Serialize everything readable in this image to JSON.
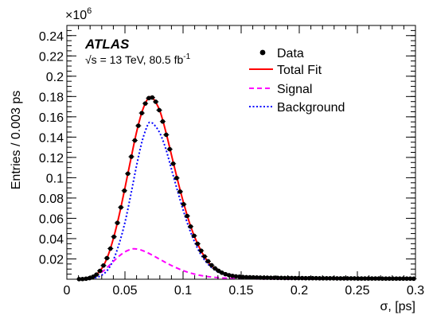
{
  "chart_data": {
    "type": "line",
    "xlabel": "σ, [ps]",
    "ylabel": "Entries / 0.003 ps",
    "y_multiplier": "×10",
    "y_multiplier_exp": "6",
    "xlim": [
      0,
      0.3
    ],
    "ylim": [
      0,
      0.25
    ],
    "x_ticks": [
      "0",
      "0.05",
      "0.1",
      "0.15",
      "0.2",
      "0.25",
      "0.3"
    ],
    "y_ticks": [
      "0.02",
      "0.04",
      "0.06",
      "0.08",
      "0.1",
      "0.12",
      "0.14",
      "0.16",
      "0.18",
      "0.2",
      "0.22",
      "0.24"
    ],
    "x_tick_values": [
      0,
      0.05,
      0.1,
      0.15,
      0.2,
      0.25,
      0.3
    ],
    "y_tick_values": [
      0.02,
      0.04,
      0.06,
      0.08,
      0.1,
      0.12,
      0.14,
      0.16,
      0.18,
      0.2,
      0.22,
      0.24
    ],
    "experiment": "ATLAS",
    "energy_label": "√s = 13 TeV, 80.5 fb",
    "energy_label_sup": "-1",
    "legend_position": "top-right",
    "legend": [
      {
        "name": "Data",
        "style": "marker",
        "color": "#000000"
      },
      {
        "name": "Total Fit",
        "style": "solid",
        "color": "#ff0000"
      },
      {
        "name": "Signal",
        "style": "dashed",
        "color": "#ff00ff"
      },
      {
        "name": "Background",
        "style": "dotted",
        "color": "#0000ff"
      }
    ],
    "series": [
      {
        "name": "Data",
        "kind": "points",
        "color": "#000000",
        "x": [
          0.0105,
          0.0135,
          0.0165,
          0.0195,
          0.0225,
          0.0255,
          0.0285,
          0.0315,
          0.0345,
          0.0375,
          0.0405,
          0.0435,
          0.0465,
          0.0495,
          0.0525,
          0.0555,
          0.0585,
          0.0615,
          0.0645,
          0.0675,
          0.0705,
          0.0735,
          0.0765,
          0.0795,
          0.0825,
          0.0855,
          0.0885,
          0.0915,
          0.0945,
          0.0975,
          0.1005,
          0.1035,
          0.1065,
          0.1095,
          0.1125,
          0.1155,
          0.1185,
          0.1215,
          0.1245,
          0.1275,
          0.1305,
          0.1335,
          0.1365,
          0.1395,
          0.1425,
          0.1455,
          0.1485,
          0.1515,
          0.1545,
          0.1575,
          0.1605,
          0.1635,
          0.1665,
          0.1695,
          0.1725,
          0.1755,
          0.1785,
          0.1815,
          0.1845,
          0.1875,
          0.1905,
          0.1935,
          0.1965,
          0.1995,
          0.2025,
          0.2055,
          0.2085,
          0.2115,
          0.2145,
          0.2175,
          0.2205,
          0.2235,
          0.2265,
          0.2295,
          0.2325,
          0.2355,
          0.2385,
          0.2415,
          0.2445,
          0.2475,
          0.2505,
          0.2535,
          0.2565,
          0.2595,
          0.2625,
          0.2655,
          0.2685,
          0.2715,
          0.2745,
          0.2775,
          0.2805,
          0.2835,
          0.2865,
          0.2895,
          0.2925,
          0.2955,
          0.2985
        ],
        "y": [
          0.0001,
          0.0002,
          0.0005,
          0.0011,
          0.0024,
          0.0046,
          0.0082,
          0.0135,
          0.0208,
          0.0302,
          0.0418,
          0.0555,
          0.0708,
          0.0872,
          0.104,
          0.1207,
          0.1367,
          0.1512,
          0.1637,
          0.1731,
          0.1784,
          0.179,
          0.1748,
          0.1666,
          0.1554,
          0.1423,
          0.1281,
          0.1138,
          0.0997,
          0.0863,
          0.0738,
          0.0623,
          0.0519,
          0.0428,
          0.0349,
          0.0281,
          0.0224,
          0.0177,
          0.0138,
          0.0107,
          0.0083,
          0.0064,
          0.005,
          0.004,
          0.0033,
          0.0028,
          0.0025,
          0.0022,
          0.002,
          0.0019,
          0.0018,
          0.0017,
          0.0016,
          0.0015,
          0.0015,
          0.0014,
          0.0014,
          0.0013,
          0.0013,
          0.0012,
          0.0012,
          0.0012,
          0.0011,
          0.0011,
          0.0011,
          0.001,
          0.001,
          0.001,
          0.001,
          0.0009,
          0.0009,
          0.0009,
          0.0009,
          0.0009,
          0.0008,
          0.0008,
          0.0008,
          0.0008,
          0.0008,
          0.0008,
          0.0007,
          0.0007,
          0.0007,
          0.0007,
          0.0007,
          0.0007,
          0.0007,
          0.0006,
          0.0006,
          0.0006,
          0.0006,
          0.0006,
          0.0006,
          0.0006,
          0.0006,
          0.0006,
          0.0005
        ]
      },
      {
        "name": "Total Fit",
        "kind": "line",
        "color": "#ff0000",
        "x": [
          0.01,
          0.015,
          0.02,
          0.025,
          0.03,
          0.035,
          0.04,
          0.045,
          0.05,
          0.055,
          0.06,
          0.065,
          0.07,
          0.0725,
          0.075,
          0.08,
          0.085,
          0.09,
          0.095,
          0.1,
          0.105,
          0.11,
          0.115,
          0.12,
          0.125,
          0.13,
          0.135,
          0.14,
          0.145,
          0.15,
          0.16,
          0.17,
          0.18,
          0.2,
          0.22,
          0.24,
          0.26,
          0.28,
          0.3
        ],
        "y": [
          0.0001,
          0.0003,
          0.0013,
          0.0042,
          0.0105,
          0.022,
          0.04,
          0.063,
          0.09,
          0.118,
          0.145,
          0.166,
          0.1785,
          0.1792,
          0.177,
          0.166,
          0.146,
          0.1225,
          0.099,
          0.077,
          0.0575,
          0.0415,
          0.029,
          0.0195,
          0.0128,
          0.0085,
          0.0058,
          0.0041,
          0.0031,
          0.0025,
          0.0019,
          0.0016,
          0.0013,
          0.0011,
          0.0009,
          0.0008,
          0.0007,
          0.0006,
          0.0005
        ]
      },
      {
        "name": "Signal",
        "kind": "line",
        "color": "#ff00ff",
        "x": [
          0.01,
          0.02,
          0.03,
          0.035,
          0.04,
          0.045,
          0.05,
          0.055,
          0.0575,
          0.06,
          0.065,
          0.07,
          0.075,
          0.08,
          0.085,
          0.09,
          0.1,
          0.11,
          0.12,
          0.13,
          0.14,
          0.15,
          0.16,
          0.18,
          0.2,
          0.25,
          0.3
        ],
        "y": [
          0.0001,
          0.0015,
          0.007,
          0.012,
          0.0175,
          0.0228,
          0.027,
          0.0295,
          0.03,
          0.0298,
          0.0283,
          0.0258,
          0.0228,
          0.0196,
          0.0165,
          0.0135,
          0.0085,
          0.005,
          0.0028,
          0.0016,
          0.0009,
          0.0006,
          0.0004,
          0.0002,
          0.0001,
          0.0,
          0.0
        ]
      },
      {
        "name": "Background",
        "kind": "line",
        "color": "#0000ff",
        "x": [
          0.015,
          0.02,
          0.025,
          0.03,
          0.035,
          0.04,
          0.045,
          0.05,
          0.055,
          0.06,
          0.065,
          0.07,
          0.0725,
          0.075,
          0.08,
          0.085,
          0.09,
          0.095,
          0.1,
          0.105,
          0.11,
          0.115,
          0.12,
          0.125,
          0.13,
          0.135,
          0.14,
          0.15,
          0.16,
          0.18,
          0.2,
          0.24,
          0.28,
          0.3
        ],
        "y": [
          0.0001,
          0.0004,
          0.0015,
          0.004,
          0.009,
          0.019,
          0.035,
          0.056,
          0.083,
          0.112,
          0.137,
          0.153,
          0.154,
          0.1525,
          0.144,
          0.129,
          0.1085,
          0.088,
          0.0685,
          0.051,
          0.0365,
          0.025,
          0.0168,
          0.011,
          0.0072,
          0.005,
          0.0035,
          0.0021,
          0.0016,
          0.0012,
          0.001,
          0.0008,
          0.0006,
          0.0005
        ]
      }
    ]
  }
}
